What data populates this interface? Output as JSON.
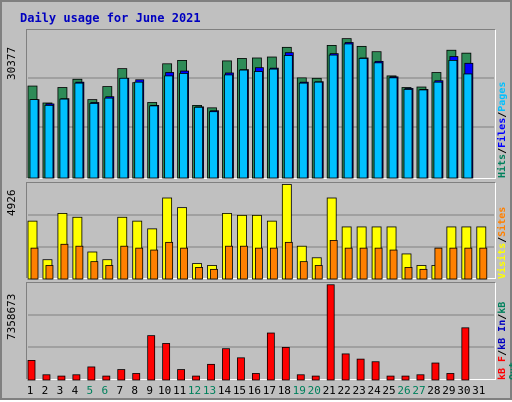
{
  "chart_data": {
    "type": "bar",
    "title": "Daily usage for June 2021",
    "categories": [
      "1",
      "2",
      "3",
      "4",
      "5",
      "6",
      "7",
      "8",
      "9",
      "10",
      "11",
      "12",
      "13",
      "14",
      "15",
      "16",
      "17",
      "18",
      "19",
      "20",
      "21",
      "22",
      "23",
      "24",
      "25",
      "26",
      "27",
      "28",
      "29",
      "30",
      "31"
    ],
    "weekend_days": [
      "5",
      "6",
      "12",
      "13",
      "19",
      "20",
      "26",
      "27"
    ],
    "panels": [
      {
        "name": "top",
        "ymax_label": "30377",
        "ylim": [
          0,
          30377
        ],
        "legend": [
          {
            "text": "Hits",
            "color": "#00805c"
          },
          {
            "sep": "/",
            "color": "#000000"
          },
          {
            "text": "Files",
            "color": "#0000ff"
          },
          {
            "sep": "/",
            "color": "#000000"
          },
          {
            "text": "Pages",
            "color": "#00c0ff"
          }
        ],
        "series": [
          {
            "name": "Hits",
            "color": "#2e8b57",
            "values": [
              19000,
              15500,
              18700,
              20400,
              16200,
              18900,
              22600,
              19700,
              15600,
              23600,
              24300,
              15000,
              14500,
              24200,
              24700,
              24800,
              25000,
              27000,
              20700,
              20600,
              27400,
              28800,
              27200,
              26100,
              21100,
              18700,
              18800,
              21800,
              26400,
              25800,
              0
            ]
          },
          {
            "name": "Files",
            "color": "#0000ff",
            "values": [
              16200,
              15300,
              16400,
              19800,
              15600,
              16800,
              20600,
              20300,
              15000,
              21800,
              22100,
              14700,
              13900,
              21700,
              22400,
              22800,
              22700,
              25900,
              19800,
              19900,
              25700,
              28000,
              24800,
              24100,
              20900,
              18500,
              18300,
              20100,
              25100,
              23700,
              0
            ]
          },
          {
            "name": "Pages",
            "color": "#00c0ff",
            "values": [
              16200,
              15000,
              16300,
              19600,
              15400,
              16500,
              20600,
              19800,
              14900,
              21100,
              21600,
              14600,
              13700,
              21300,
              22300,
              22000,
              22500,
              25300,
              19600,
              19800,
              25400,
              27700,
              24700,
              23800,
              20700,
              18300,
              18200,
              19800,
              24300,
              21500,
              0
            ]
          }
        ]
      },
      {
        "name": "middle",
        "ymax_label": "4926",
        "ylim": [
          0,
          4926
        ],
        "legend": [
          {
            "text": "Visits",
            "color": "#ffff00"
          },
          {
            "sep": "/",
            "color": "#000000"
          },
          {
            "text": "Sites",
            "color": "#ff8000"
          }
        ],
        "series": [
          {
            "name": "Visits",
            "color": "#ffff00",
            "values": [
              3000,
              1000,
              3400,
              3200,
              1400,
              1000,
              3200,
              3000,
              2600,
              4200,
              3700,
              800,
              700,
              3400,
              3300,
              3300,
              3000,
              4900,
              1700,
              1100,
              4200,
              2700,
              2700,
              2700,
              2700,
              1300,
              700,
              700,
              2700,
              2700,
              2700
            ],
            "values_note": "non-weekend days"
          },
          {
            "name": "Sites",
            "color": "#ff8000",
            "values": [
              1600,
              700,
              1800,
              1700,
              900,
              700,
              1700,
              1600,
              1500,
              1900,
              1600,
              600,
              500,
              1700,
              1700,
              1600,
              1600,
              1900,
              900,
              700,
              2000,
              1600,
              1600,
              1600,
              1500,
              600,
              500,
              1600,
              1600,
              1600,
              1600
            ]
          }
        ]
      },
      {
        "name": "bottom",
        "ymax_label": "7358673",
        "ylim": [
          0,
          7358673
        ],
        "legend": [
          {
            "text": "kB F",
            "color": "#ff0000"
          },
          {
            "sep": "/",
            "color": "#000000"
          },
          {
            "text": "kB In",
            "color": "#0000c0"
          },
          {
            "sep": "/",
            "color": "#000000"
          },
          {
            "text": "kB Out",
            "color": "#00805c"
          }
        ],
        "series": [
          {
            "name": "kB F",
            "color": "#ff0000",
            "values": [
              1500000,
              400000,
              300000,
              400000,
              1000000,
              300000,
              800000,
              500000,
              3400000,
              2800000,
              800000,
              300000,
              1200000,
              2400000,
              1700000,
              500000,
              3600000,
              2500000,
              400000,
              300000,
              7300000,
              2000000,
              1600000,
              1400000,
              300000,
              300000,
              400000,
              1300000,
              500000,
              4000000,
              0
            ]
          }
        ]
      }
    ]
  }
}
